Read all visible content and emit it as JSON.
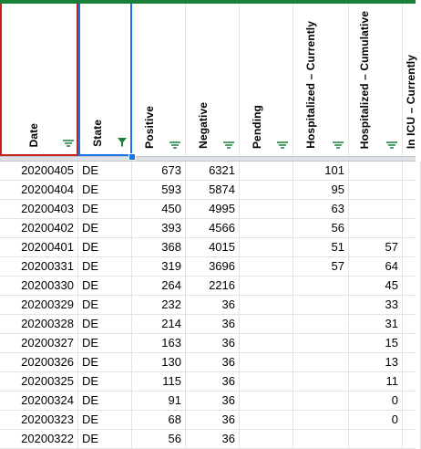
{
  "columns": [
    {
      "label": "Date"
    },
    {
      "label": "State",
      "filter_active": true
    },
    {
      "label": "Positive"
    },
    {
      "label": "Negative"
    },
    {
      "label": "Pending"
    },
    {
      "label": "Hospitalized – Currently"
    },
    {
      "label": "Hospitalized – Cumulative"
    },
    {
      "label": "In ICU – Currently"
    }
  ],
  "rows": [
    [
      "20200405",
      "DE",
      "673",
      "6321",
      "",
      "101",
      "",
      ""
    ],
    [
      "20200404",
      "DE",
      "593",
      "5874",
      "",
      "95",
      "",
      ""
    ],
    [
      "20200403",
      "DE",
      "450",
      "4995",
      "",
      "63",
      "",
      ""
    ],
    [
      "20200402",
      "DE",
      "393",
      "4566",
      "",
      "56",
      "",
      ""
    ],
    [
      "20200401",
      "DE",
      "368",
      "4015",
      "",
      "51",
      "57",
      ""
    ],
    [
      "20200331",
      "DE",
      "319",
      "3696",
      "",
      "57",
      "64",
      ""
    ],
    [
      "20200330",
      "DE",
      "264",
      "2216",
      "",
      "",
      "45",
      ""
    ],
    [
      "20200329",
      "DE",
      "232",
      "36",
      "",
      "",
      "33",
      ""
    ],
    [
      "20200328",
      "DE",
      "214",
      "36",
      "",
      "",
      "31",
      ""
    ],
    [
      "20200327",
      "DE",
      "163",
      "36",
      "",
      "",
      "15",
      ""
    ],
    [
      "20200326",
      "DE",
      "130",
      "36",
      "",
      "",
      "13",
      ""
    ],
    [
      "20200325",
      "DE",
      "115",
      "36",
      "",
      "",
      "11",
      ""
    ],
    [
      "20200324",
      "DE",
      "91",
      "36",
      "",
      "",
      "0",
      ""
    ],
    [
      "20200323",
      "DE",
      "68",
      "36",
      "",
      "",
      "0",
      ""
    ],
    [
      "20200322",
      "DE",
      "56",
      "36",
      "",
      "",
      "",
      ""
    ]
  ],
  "colors": {
    "filter_icon": "#188038",
    "date_border": "#c5221f",
    "state_border": "#1a73e8",
    "top_line": "#188038"
  }
}
